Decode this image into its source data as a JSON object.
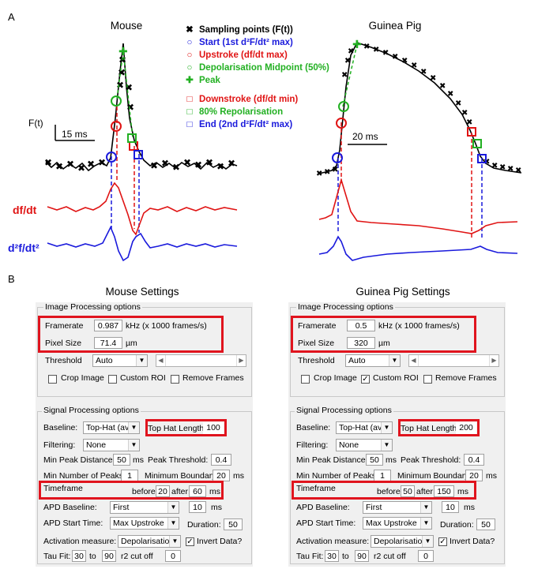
{
  "panel_a": {
    "letter": "A",
    "mouse_title": "Mouse",
    "gp_title": "Guinea Pig",
    "legend": [
      {
        "marker": "✖",
        "color": "#000000",
        "text": "Sampling points (F(t))"
      },
      {
        "marker": "○",
        "color": "#1a1adc",
        "text": "Start (1st d²F/dt² max)"
      },
      {
        "marker": "○",
        "color": "#e01414",
        "text": "Upstroke (df/dt  max)"
      },
      {
        "marker": "○",
        "color": "#22b022",
        "text": "Depolarisation Midpoint (50%)"
      },
      {
        "marker": "✚",
        "color": "#22b022",
        "text": "Peak"
      },
      {
        "marker": "□",
        "color": "#e01414",
        "text": "Downstroke (df/dt min)"
      },
      {
        "marker": "□",
        "color": "#22b022",
        "text": "80% Repolarisation"
      },
      {
        "marker": "□",
        "color": "#1a1adc",
        "text": "End (2nd d²F/dt² max)"
      }
    ],
    "ft_label": "F(t)",
    "mouse_scale": "15 ms",
    "gp_scale": "20 ms",
    "dfdt_label": "df/dt",
    "d2_label": "d²f/dt²",
    "colors": {
      "red": "#e01414",
      "blue": "#1a1adc",
      "green": "#22b022",
      "black": "#000000"
    }
  },
  "panel_b": {
    "letter": "B",
    "mouse": {
      "title": "Mouse Settings",
      "image_group": "Image Processing options",
      "framerate_label": "Framerate",
      "framerate": "0.987",
      "framerate_unit": "kHz (x 1000 frames/s)",
      "pixel_label": "Pixel Size",
      "pixel": "71.4",
      "pixel_unit": "µm",
      "threshold_label": "Threshold",
      "threshold": "Auto",
      "crop": "Crop Image",
      "crop_checked": "",
      "custom_roi": "Custom ROI",
      "custom_roi_checked": "",
      "remove_frames": "Remove Frames",
      "remove_checked": "",
      "signal_group": "Signal Processing options",
      "baseline_label": "Baseline:",
      "baseline": "Top-Hat (av...",
      "tophat_label": "Top Hat Length",
      "tophat": "100",
      "filtering_label": "Filtering:",
      "filtering": "None",
      "min_peak_dist_label": "Min Peak Distance",
      "min_peak_dist": "50",
      "ms1": "ms",
      "peak_thresh_label": "Peak Threshold:",
      "peak_thresh": "0.4",
      "min_num_peaks_label": "Min Number of Peaks",
      "min_num_peaks": "1",
      "min_boundary_label": "Minimum Boundary",
      "min_boundary": "20",
      "ms2": "ms",
      "timeframe_label": "Timeframe",
      "before_label": "before:",
      "before": "20",
      "after_label": "after:",
      "after": "60",
      "ms3": "ms",
      "apd_baseline_label": "APD Baseline:",
      "apd_baseline": "First",
      "apd_baseline_val": "10",
      "ms4": "ms",
      "apd_start_label": "APD Start Time:",
      "apd_start": "Max Upstroke",
      "duration_label": "Duration:",
      "duration": "50",
      "activation_label": "Activation measure:",
      "activation": "Depolarisatio...",
      "invert_label": "Invert Data?",
      "invert_checked": "✓",
      "tau_label": "Tau Fit:",
      "tau_from": "30",
      "to_label": "to",
      "tau_to": "90",
      "r2_label": "r2 cut off",
      "r2": "0"
    },
    "gp": {
      "title": "Guinea Pig Settings",
      "image_group": "Image Processing options",
      "framerate_label": "Framerate",
      "framerate": "0.5",
      "framerate_unit": "kHz (x 1000 frames/s)",
      "pixel_label": "Pixel Size",
      "pixel": "320",
      "pixel_unit": "µm",
      "threshold_label": "Threshold",
      "threshold": "Auto",
      "crop": "Crop Image",
      "crop_checked": "",
      "custom_roi": "Custom ROI",
      "custom_roi_checked": "✓",
      "remove_frames": "Remove Frames",
      "remove_checked": "",
      "signal_group": "Signal Processing options",
      "baseline_label": "Baseline:",
      "baseline": "Top-Hat (av...",
      "tophat_label": "Top Hat Length",
      "tophat": "200",
      "filtering_label": "Filtering:",
      "filtering": "None",
      "min_peak_dist_label": "Min Peak Distance",
      "min_peak_dist": "50",
      "ms1": "ms",
      "peak_thresh_label": "Peak Threshold:",
      "peak_thresh": "0.4",
      "min_num_peaks_label": "Min Number of Peaks",
      "min_num_peaks": "1",
      "min_boundary_label": "Minimum Boundary",
      "min_boundary": "20",
      "ms2": "ms",
      "timeframe_label": "Timeframe",
      "before_label": "before:",
      "before": "50",
      "after_label": "after:",
      "after": "150",
      "ms3": "ms",
      "apd_baseline_label": "APD Baseline:",
      "apd_baseline": "First",
      "apd_baseline_val": "10",
      "ms4": "ms",
      "apd_start_label": "APD Start Time:",
      "apd_start": "Max Upstroke",
      "duration_label": "Duration:",
      "duration": "50",
      "activation_label": "Activation measure:",
      "activation": "Depolarisatio...",
      "invert_label": "Invert Data?",
      "invert_checked": "✓",
      "tau_label": "Tau Fit:",
      "tau_from": "30",
      "to_label": "to",
      "tau_to": "90",
      "r2_label": "r2 cut off",
      "r2": "0"
    }
  }
}
